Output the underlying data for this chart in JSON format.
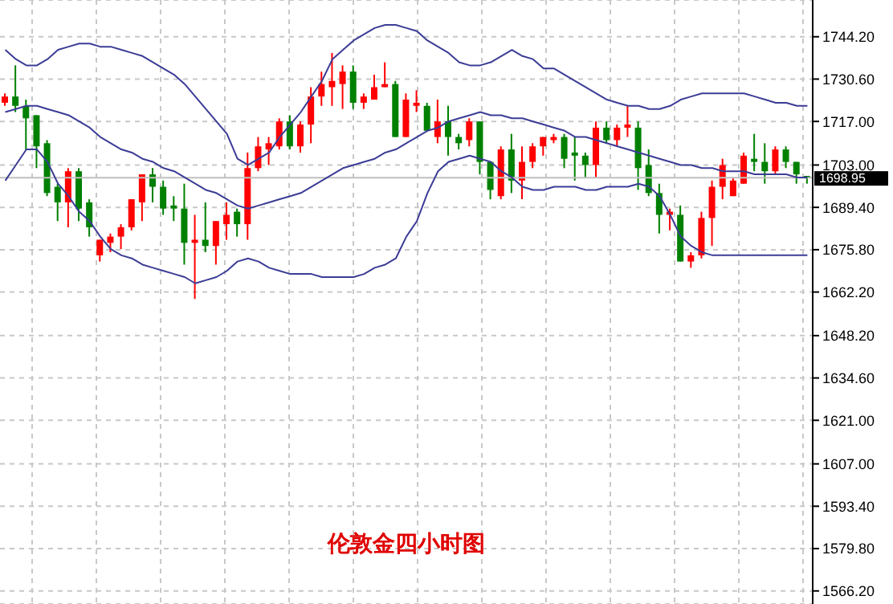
{
  "chart_data": {
    "type": "candlestick",
    "title": "伦敦金四小时图",
    "categories": [
      null,
      null,
      null,
      null,
      null,
      null,
      null,
      null,
      null,
      null,
      null,
      null,
      null,
      null,
      null,
      null,
      null,
      null,
      null,
      null,
      null,
      null,
      null,
      null,
      null,
      null,
      null,
      null,
      null,
      null,
      null,
      null,
      null,
      null,
      null,
      null,
      null,
      null,
      null,
      null,
      null,
      null,
      null,
      null,
      null,
      null,
      null,
      null,
      null,
      null,
      null,
      null,
      null,
      null,
      null,
      null,
      null,
      null,
      null,
      null,
      null,
      null,
      null,
      null,
      null,
      null,
      null,
      null,
      null,
      null,
      null,
      null,
      null,
      null,
      null,
      null,
      null
    ],
    "ohlc": [
      [
        1723,
        1726,
        1722,
        1725
      ],
      [
        1725,
        1735,
        1720,
        1722
      ],
      [
        1722,
        1724,
        1708,
        1718
      ],
      [
        1719,
        1719,
        1702,
        1709
      ],
      [
        1710,
        1711,
        1693,
        1694
      ],
      [
        1696,
        1697,
        1685,
        1691
      ],
      [
        1691,
        1702,
        1683,
        1701
      ],
      [
        1701,
        1702,
        1685,
        1689
      ],
      [
        1691,
        1692,
        1680,
        1683
      ],
      [
        1674,
        1679,
        1672,
        1679
      ],
      [
        1678,
        1681,
        1675,
        1680
      ],
      [
        1680,
        1684,
        1676,
        1683
      ],
      [
        1683,
        1692,
        1682,
        1692
      ],
      [
        1691,
        1700,
        1685,
        1700
      ],
      [
        1700,
        1702,
        1691,
        1696
      ],
      [
        1696,
        1698,
        1687,
        1689
      ],
      [
        1690,
        1693,
        1685,
        1689
      ],
      [
        1689,
        1697,
        1671,
        1678
      ],
      [
        1678,
        1687,
        1660,
        1679
      ],
      [
        1679,
        1691,
        1675,
        1677
      ],
      [
        1677,
        1685,
        1671,
        1685
      ],
      [
        1684,
        1691,
        1679,
        1687
      ],
      [
        1688,
        1689,
        1680,
        1684
      ],
      [
        1684,
        1707,
        1679,
        1702
      ],
      [
        1702,
        1712,
        1701,
        1709
      ],
      [
        1708,
        1712,
        1703,
        1710
      ],
      [
        1709,
        1718,
        1708,
        1717
      ],
      [
        1717,
        1719,
        1708,
        1709
      ],
      [
        1709,
        1717,
        1707,
        1716
      ],
      [
        1716,
        1728,
        1710,
        1725
      ],
      [
        1725,
        1733,
        1722,
        1729
      ],
      [
        1728,
        1739,
        1722,
        1730
      ],
      [
        1729,
        1735,
        1721,
        1733
      ],
      [
        1733,
        1735,
        1721,
        1723
      ],
      [
        1723,
        1726,
        1721,
        1725
      ],
      [
        1724,
        1732,
        1724,
        1728
      ],
      [
        1728,
        1736,
        1728,
        1729
      ],
      [
        1729,
        1730,
        1712,
        1712
      ],
      [
        1712,
        1726,
        1712,
        1724
      ],
      [
        1722,
        1727,
        1720,
        1723
      ],
      [
        1722,
        1723,
        1714,
        1714
      ],
      [
        1712,
        1724,
        1710,
        1717
      ],
      [
        1717,
        1722,
        1706,
        1712
      ],
      [
        1712,
        1713,
        1708,
        1710
      ],
      [
        1711,
        1718,
        1709,
        1717
      ],
      [
        1717,
        1717,
        1700,
        1704
      ],
      [
        1704,
        1704,
        1692,
        1695
      ],
      [
        1693,
        1709,
        1692,
        1708
      ],
      [
        1708,
        1713,
        1694,
        1698
      ],
      [
        1698,
        1709,
        1692,
        1704
      ],
      [
        1704,
        1710,
        1702,
        1709
      ],
      [
        1709,
        1712,
        1706,
        1712
      ],
      [
        1711,
        1713,
        1710,
        1712
      ],
      [
        1712,
        1713,
        1702,
        1705
      ],
      [
        1707,
        1712,
        1698,
        1706
      ],
      [
        1706,
        1707,
        1699,
        1703
      ],
      [
        1703,
        1717,
        1699,
        1715
      ],
      [
        1715,
        1717,
        1710,
        1711
      ],
      [
        1711,
        1716,
        1709,
        1715
      ],
      [
        1715,
        1722,
        1712,
        1716
      ],
      [
        1715,
        1717,
        1695,
        1702
      ],
      [
        1703,
        1708,
        1693,
        1694
      ],
      [
        1694,
        1697,
        1681,
        1687
      ],
      [
        1687,
        1689,
        1682,
        1688
      ],
      [
        1687,
        1690,
        1672,
        1672
      ],
      [
        1672,
        1675,
        1670,
        1674
      ],
      [
        1674,
        1688,
        1673,
        1686
      ],
      [
        1686,
        1698,
        1677,
        1696
      ],
      [
        1696,
        1705,
        1692,
        1703
      ],
      [
        1693,
        1699,
        1693,
        1698
      ],
      [
        1697,
        1707,
        1697,
        1706
      ],
      [
        1705,
        1713,
        1701,
        1704
      ],
      [
        1704,
        1710,
        1697,
        1701
      ],
      [
        1701,
        1709,
        1700,
        1708
      ],
      [
        1708,
        1709,
        1702,
        1704
      ],
      [
        1704,
        1704,
        1697,
        1700
      ],
      [
        1699.5,
        1699.5,
        1697,
        1698.95
      ]
    ],
    "colors": [
      "#ff0000",
      "#008000",
      "#008000",
      "#008000",
      "#008000",
      "#008000",
      "#ff0000",
      "#008000",
      "#008000",
      "#ff0000",
      "#ff0000",
      "#ff0000",
      "#ff0000",
      "#ff0000",
      "#008000",
      "#008000",
      "#008000",
      "#008000",
      "#ff0000",
      "#008000",
      "#ff0000",
      "#ff0000",
      "#008000",
      "#ff0000",
      "#ff0000",
      "#ff0000",
      "#ff0000",
      "#008000",
      "#ff0000",
      "#ff0000",
      "#ff0000",
      "#ff0000",
      "#ff0000",
      "#008000",
      "#ff0000",
      "#ff0000",
      "#ff0000",
      "#008000",
      "#ff0000",
      "#ff0000",
      "#008000",
      "#ff0000",
      "#008000",
      "#008000",
      "#ff0000",
      "#008000",
      "#008000",
      "#ff0000",
      "#008000",
      "#ff0000",
      "#ff0000",
      "#ff0000",
      "#ff0000",
      "#008000",
      "#008000",
      "#008000",
      "#ff0000",
      "#008000",
      "#ff0000",
      "#ff0000",
      "#008000",
      "#008000",
      "#008000",
      "#ff0000",
      "#008000",
      "#ff0000",
      "#ff0000",
      "#ff0000",
      "#ff0000",
      "#ff0000",
      "#ff0000",
      "#008000",
      "#008000",
      "#ff0000",
      "#008000",
      "#008000",
      "#008000"
    ],
    "series": [
      {
        "type": "line",
        "color": "#3c3c96",
        "values": [
          1740,
          1737,
          1735,
          1735,
          1737,
          1740,
          1741,
          1742,
          1742,
          1741,
          1741,
          1740,
          1739,
          1738,
          1736,
          1734,
          1732,
          1729,
          1725,
          1721,
          1717,
          1713,
          1705,
          1703,
          1705,
          1707,
          1712,
          1716,
          1720,
          1725,
          1730,
          1737,
          1740,
          1743,
          1745,
          1747,
          1748,
          1748,
          1747,
          1746,
          1743,
          1741,
          1739,
          1736,
          1735,
          1735,
          1736,
          1738,
          1740,
          1738,
          1737,
          1734,
          1734,
          1732,
          1730,
          1728,
          1726,
          1724,
          1723,
          1722,
          1722,
          1721,
          1721,
          1722,
          1724,
          1725,
          1726,
          1726,
          1726,
          1726,
          1726,
          1725,
          1724,
          1723,
          1723,
          1722,
          1722
        ]
      },
      {
        "type": "line",
        "color": "#3c3c96",
        "values": [
          1720,
          1721,
          1722,
          1722,
          1721,
          1720,
          1719,
          1717,
          1715,
          1712,
          1710,
          1708,
          1707,
          1705,
          1704,
          1702,
          1701,
          1699,
          1697,
          1695,
          1694,
          1692,
          1690,
          1689,
          1690,
          1691,
          1692,
          1693,
          1694,
          1696,
          1698,
          1700,
          1702,
          1703,
          1704,
          1705,
          1707,
          1708,
          1710,
          1712,
          1714,
          1715,
          1717,
          1718,
          1719,
          1720,
          1719,
          1719,
          1718,
          1718,
          1717,
          1716,
          1715,
          1714,
          1712,
          1712,
          1711,
          1710,
          1709,
          1708,
          1707,
          1706,
          1705,
          1704,
          1703,
          1703,
          1702,
          1702,
          1701,
          1701,
          1701,
          1700,
          1700,
          1700,
          1700,
          1699,
          1699
        ]
      },
      {
        "type": "line",
        "color": "#3c3c96",
        "values": [
          1698,
          1703,
          1708,
          1708,
          1704,
          1697,
          1693,
          1688,
          1685,
          1680,
          1676,
          1674,
          1673,
          1671,
          1670,
          1669,
          1668,
          1667,
          1665,
          1666,
          1667,
          1669,
          1672,
          1673,
          1672,
          1670,
          1669,
          1668,
          1668,
          1668,
          1667,
          1667,
          1667,
          1667,
          1668,
          1670,
          1671,
          1673,
          1680,
          1685,
          1694,
          1701,
          1704,
          1705,
          1706,
          1705,
          1704,
          1701,
          1699,
          1696,
          1695,
          1695,
          1696,
          1696,
          1696,
          1695,
          1695,
          1696,
          1696,
          1696,
          1697,
          1696,
          1693,
          1687,
          1680,
          1677,
          1675,
          1674,
          1674,
          1674,
          1674,
          1674,
          1674,
          1674,
          1674,
          1674,
          1674
        ]
      }
    ],
    "ylim": [
      1562,
      1756
    ],
    "yticks": [
      {
        "value": 1744.2,
        "label": "1744.20"
      },
      {
        "value": 1730.6,
        "label": "1730.60"
      },
      {
        "value": 1717,
        "label": "1717.00"
      },
      {
        "value": 1703,
        "label": "1703.00"
      },
      {
        "value": 1689.4,
        "label": "1689.40"
      },
      {
        "value": 1675.8,
        "label": "1675.80"
      },
      {
        "value": 1662.2,
        "label": "1662.20"
      },
      {
        "value": 1648.2,
        "label": "1648.20"
      },
      {
        "value": 1634.6,
        "label": "1634.60"
      },
      {
        "value": 1621,
        "label": "1621.00"
      },
      {
        "value": 1607,
        "label": "1607.00"
      },
      {
        "value": 1593.4,
        "label": "1593.40"
      },
      {
        "value": 1579.8,
        "label": "1579.80"
      },
      {
        "value": 1566.2,
        "label": "1566.20"
      }
    ],
    "ref_lines": [
      {
        "axis": "y",
        "value": 1698.95,
        "label": "1698.95",
        "color": "#c0c0c0"
      }
    ],
    "grid": true,
    "tick_labels": "y"
  }
}
